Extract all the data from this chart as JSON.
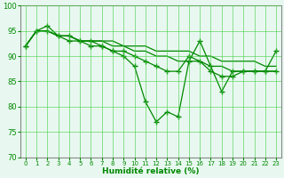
{
  "xlabel": "Humidité relative (%)",
  "bg_color": "#e8f8f0",
  "grid_color": "#44cc44",
  "line_color": "#008800",
  "xlim": [
    -0.5,
    23.5
  ],
  "ylim": [
    70,
    100
  ],
  "yticks": [
    70,
    75,
    80,
    85,
    90,
    95,
    100
  ],
  "xticks": [
    0,
    1,
    2,
    3,
    4,
    5,
    6,
    7,
    8,
    9,
    10,
    11,
    12,
    13,
    14,
    15,
    16,
    17,
    18,
    19,
    20,
    21,
    22,
    23
  ],
  "series": [
    [
      92,
      95,
      96,
      94,
      94,
      93,
      93,
      92,
      91,
      90,
      88,
      81,
      77,
      79,
      78,
      89,
      93,
      88,
      83,
      87,
      87,
      87,
      87,
      91
    ],
    [
      92,
      95,
      95,
      94,
      93,
      93,
      92,
      92,
      91,
      91,
      90,
      89,
      88,
      87,
      87,
      90,
      89,
      87,
      86,
      86,
      87,
      87,
      87,
      87
    ],
    [
      92,
      95,
      95,
      94,
      94,
      93,
      93,
      93,
      92,
      92,
      91,
      91,
      90,
      90,
      89,
      89,
      89,
      88,
      88,
      87,
      87,
      87,
      87,
      87
    ],
    [
      92,
      95,
      95,
      94,
      94,
      93,
      93,
      93,
      93,
      92,
      92,
      92,
      91,
      91,
      91,
      91,
      90,
      90,
      89,
      89,
      89,
      89,
      88,
      88
    ]
  ]
}
